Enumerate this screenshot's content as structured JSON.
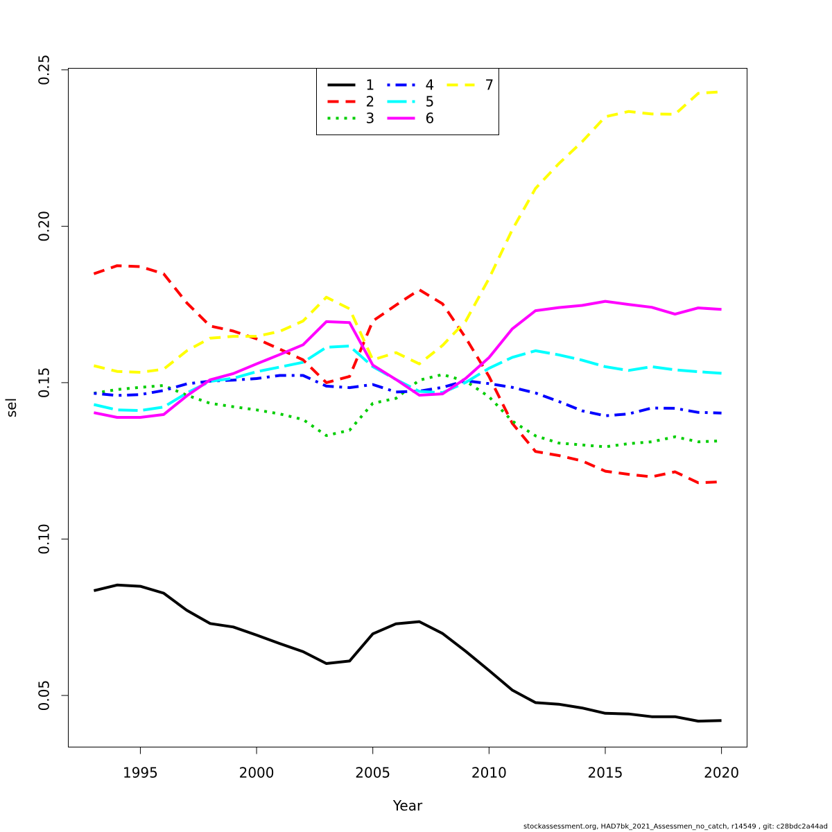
{
  "chart_data": {
    "type": "line",
    "title": "",
    "xlabel": "Year",
    "ylabel": "sel",
    "xlim": [
      1991.9,
      2021.1
    ],
    "ylim": [
      0.0335,
      0.2505
    ],
    "xticks": [
      "1995",
      "2000",
      "2005",
      "2010",
      "2015",
      "2020"
    ],
    "yticks": [
      "0.05",
      "0.10",
      "0.15",
      "0.20",
      "0.25"
    ],
    "grid": false,
    "legend": {
      "placement": "top-center",
      "ncol": 3
    },
    "x": [
      1993,
      1994,
      1995,
      1996,
      1997,
      1998,
      1999,
      2000,
      2001,
      2002,
      2003,
      2004,
      2005,
      2006,
      2007,
      2008,
      2009,
      2010,
      2011,
      2012,
      2013,
      2014,
      2015,
      2016,
      2017,
      2018,
      2019,
      2020
    ],
    "series": [
      {
        "name": "1",
        "color": "#000000",
        "dash": "solid",
        "values": [
          0.0835,
          0.0853,
          0.0849,
          0.0827,
          0.0772,
          0.073,
          0.0719,
          0.0693,
          0.0666,
          0.064,
          0.0602,
          0.061,
          0.0697,
          0.0729,
          0.0736,
          0.0698,
          0.0641,
          0.058,
          0.0517,
          0.0477,
          0.0472,
          0.046,
          0.0443,
          0.0441,
          0.0432,
          0.0432,
          0.0418,
          0.042
        ]
      },
      {
        "name": "2",
        "color": "#ff0000",
        "dash": "dashed",
        "values": [
          0.1848,
          0.1874,
          0.1871,
          0.1848,
          0.1755,
          0.1681,
          0.1665,
          0.164,
          0.1607,
          0.1573,
          0.15,
          0.152,
          0.1697,
          0.1748,
          0.1797,
          0.1752,
          0.1643,
          0.152,
          0.137,
          0.128,
          0.1267,
          0.125,
          0.1217,
          0.1207,
          0.1199,
          0.1215,
          0.118,
          0.1183
        ]
      },
      {
        "name": "3",
        "color": "#00cd00",
        "dash": "dotted",
        "values": [
          0.1466,
          0.1478,
          0.1485,
          0.1491,
          0.146,
          0.1434,
          0.1423,
          0.1413,
          0.14,
          0.1382,
          0.1331,
          0.1348,
          0.1434,
          0.145,
          0.1508,
          0.1526,
          0.1505,
          0.1455,
          0.1377,
          0.133,
          0.1307,
          0.1301,
          0.1295,
          0.1305,
          0.1311,
          0.1327,
          0.1311,
          0.1314
        ]
      },
      {
        "name": "4",
        "color": "#0000ff",
        "dash": "dashdot",
        "values": [
          0.1466,
          0.1459,
          0.1462,
          0.1475,
          0.1496,
          0.1505,
          0.1508,
          0.1513,
          0.1523,
          0.1523,
          0.1489,
          0.1484,
          0.1494,
          0.147,
          0.1473,
          0.1485,
          0.1506,
          0.1497,
          0.1485,
          0.1467,
          0.144,
          0.141,
          0.1394,
          0.14,
          0.1419,
          0.1418,
          0.1405,
          0.1403
        ]
      },
      {
        "name": "5",
        "color": "#00ffff",
        "dash": "longdash",
        "values": [
          0.143,
          0.1413,
          0.1411,
          0.1422,
          0.1467,
          0.1504,
          0.1514,
          0.1535,
          0.155,
          0.1565,
          0.1613,
          0.1617,
          0.1551,
          0.151,
          0.1472,
          0.1468,
          0.1501,
          0.1546,
          0.1581,
          0.1602,
          0.1589,
          0.1572,
          0.1551,
          0.1539,
          0.1551,
          0.1541,
          0.1535,
          0.153
        ]
      },
      {
        "name": "6",
        "color": "#ff00ff",
        "dash": "solid",
        "values": [
          0.1404,
          0.1389,
          0.1389,
          0.1398,
          0.1458,
          0.1509,
          0.1529,
          0.156,
          0.159,
          0.1621,
          0.1695,
          0.1692,
          0.1556,
          0.151,
          0.146,
          0.1464,
          0.1514,
          0.158,
          0.1672,
          0.173,
          0.174,
          0.1747,
          0.176,
          0.175,
          0.1741,
          0.1719,
          0.1739,
          0.1734
        ]
      },
      {
        "name": "7",
        "color": "#ffff00",
        "dash": "dashed",
        "values": [
          0.1554,
          0.1536,
          0.1533,
          0.1543,
          0.1602,
          0.1642,
          0.1648,
          0.1648,
          0.1664,
          0.1697,
          0.1773,
          0.1736,
          0.1573,
          0.1596,
          0.156,
          0.1619,
          0.1697,
          0.1833,
          0.1989,
          0.2121,
          0.22,
          0.227,
          0.235,
          0.2367,
          0.2359,
          0.2358,
          0.2425,
          0.243
        ]
      }
    ]
  },
  "footnote": "stockassessment.org, HAD7bk_2021_Assessmen_no_catch, r14549 , git: c28bdc2a44ad"
}
